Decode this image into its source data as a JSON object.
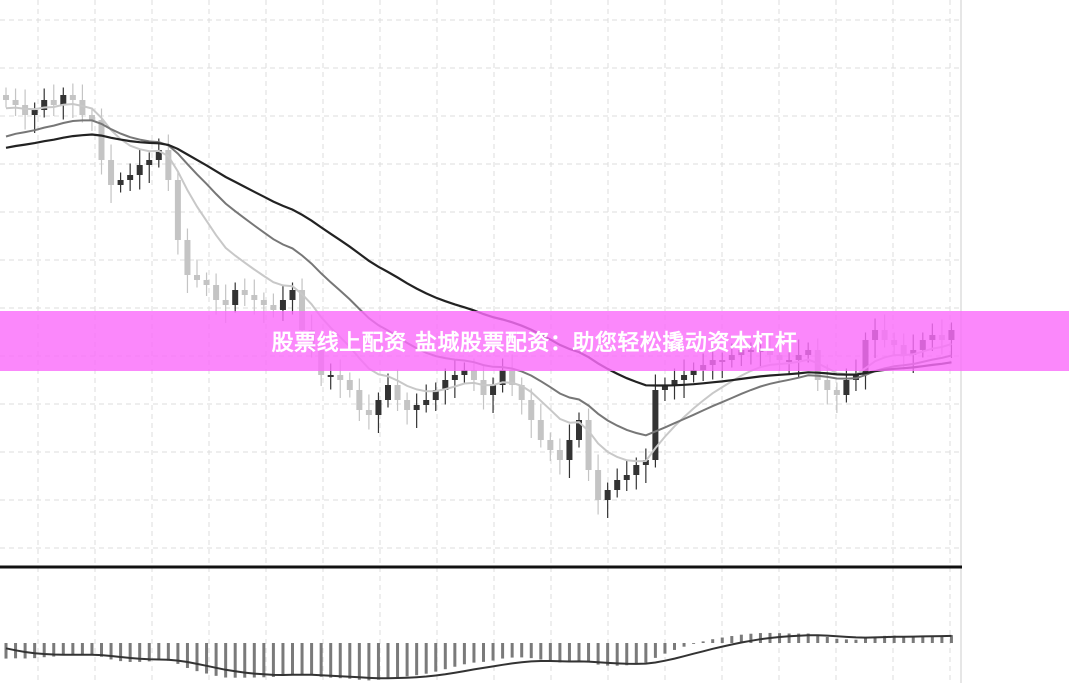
{
  "banner": {
    "text": "股票线上配资 盐城股票配资：助您轻松撬动资本杠杆"
  },
  "colors": {
    "up": "#333333",
    "down": "#c4c4c4",
    "ma_fast": "#c8c8c8",
    "ma_mid": "#777777",
    "ma_slow": "#222222",
    "macd_hist": "#7a7a7a",
    "banner": "#f77ef7",
    "grid": "#dddddd"
  },
  "chart_data": {
    "type": "candlestick",
    "grid": true,
    "close": [
      100,
      99,
      97,
      98,
      100,
      99,
      101,
      100,
      97,
      96,
      88,
      83,
      84,
      85,
      87,
      88,
      90,
      84,
      72,
      65,
      64,
      63,
      60,
      59,
      62,
      61,
      60,
      59,
      58,
      60,
      62,
      54,
      50,
      45,
      45,
      44,
      42,
      38,
      37,
      40,
      43,
      40,
      38,
      39,
      40,
      42,
      44,
      45,
      46,
      44,
      41,
      43,
      46,
      43,
      40,
      36,
      32,
      30,
      28,
      32,
      36,
      26,
      20,
      22,
      24,
      25,
      27,
      28,
      42,
      43,
      44,
      45,
      46,
      47,
      48,
      48,
      49,
      50,
      50,
      50,
      49,
      48,
      48,
      49,
      50,
      44,
      42,
      41,
      44,
      45,
      52,
      54,
      52,
      51,
      49,
      50,
      52,
      53,
      52,
      54
    ],
    "moving_averages": [
      "fast",
      "mid",
      "slow"
    ],
    "lower_panel": "MACD histogram with signal line"
  }
}
